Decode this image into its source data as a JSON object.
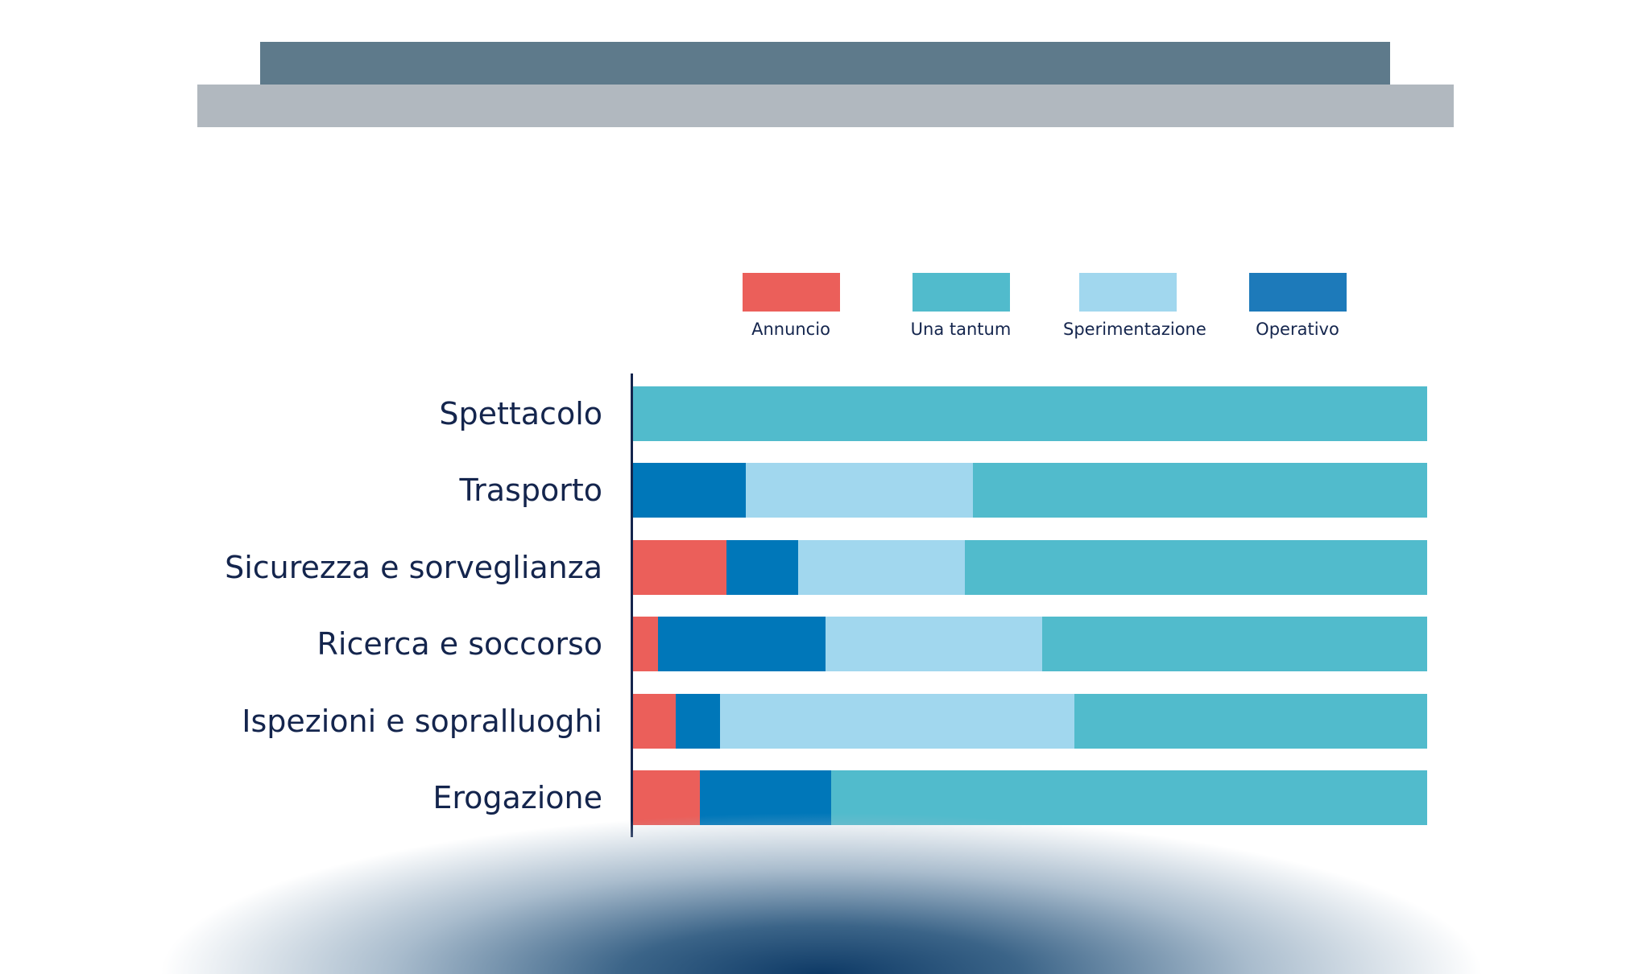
{
  "colors": {
    "banner_dark": "#5e7a8b",
    "banner_light": "#b1b8bf",
    "text": "#14254d"
  },
  "chart_data": {
    "type": "bar",
    "orientation": "horizontal",
    "stacked": true,
    "legend_position": "top",
    "grid": false,
    "xlim": [
      0,
      100
    ],
    "categories": [
      "Spettacolo",
      "Trasporto",
      "Sicurezza e sorveglianza",
      "Ricerca e soccorso",
      "Ispezioni e sopralluoghi",
      "Erogazione"
    ],
    "series": [
      {
        "name": "Annuncio",
        "color": "#eb5f5a",
        "values": [
          0,
          0,
          11.8,
          3.1,
          5.4,
          8.4
        ]
      },
      {
        "name": "Operativo",
        "color": "#0077b9",
        "legend_color": "#1d7aba",
        "values": [
          0,
          14.2,
          9.0,
          21.1,
          5.6,
          16.6
        ]
      },
      {
        "name": "Sperimentazione",
        "color": "#a1d7ee",
        "values": [
          0,
          28.6,
          21.0,
          27.3,
          44.6,
          0
        ]
      },
      {
        "name": "Una tantum",
        "color": "#51bbcc",
        "values": [
          100,
          57.2,
          58.2,
          48.5,
          44.4,
          75.0
        ]
      }
    ],
    "legend_order": [
      "Annuncio",
      "Una tantum",
      "Sperimentazione",
      "Operativo"
    ]
  }
}
